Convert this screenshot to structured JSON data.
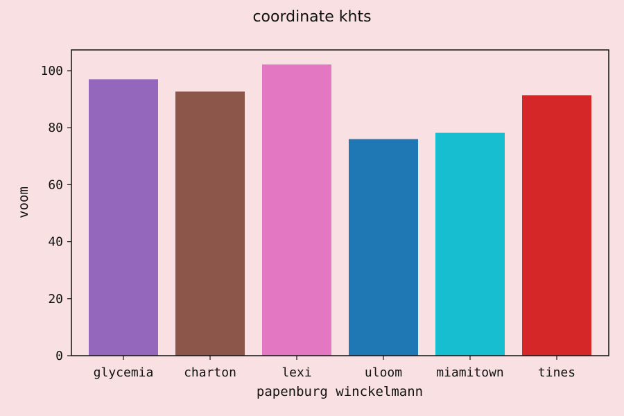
{
  "chart_data": {
    "type": "bar",
    "title": "coordinate khts",
    "xlabel": "papenburg winckelmann",
    "ylabel": "voom",
    "categories": [
      "glycemia",
      "charton",
      "lexi",
      "uloom",
      "miamitown",
      "tines"
    ],
    "values": [
      97,
      92.7,
      102.2,
      76,
      78.2,
      91.4
    ],
    "colors": [
      "#9467bd",
      "#8c564b",
      "#e377c2",
      "#1f77b4",
      "#17becf",
      "#d62728"
    ],
    "ylim": [
      0,
      107.3
    ],
    "yticks": [
      0,
      20,
      40,
      60,
      80,
      100
    ],
    "grid": false,
    "legend": false
  },
  "theme": {
    "background": "#f9e1e3",
    "axis_color": "#111111"
  }
}
